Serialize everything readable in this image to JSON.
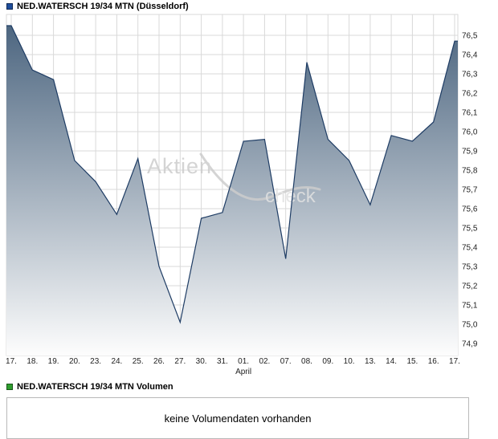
{
  "header": {
    "legend_color": "#1f4e9c",
    "title": "NED.WATERSCH 19/34 MTN (Düsseldorf)"
  },
  "chart_data": {
    "type": "area",
    "title": "NED.WATERSCH 19/34 MTN (Düsseldorf)",
    "watermark_part1": "Aktien",
    "watermark_part2": "check",
    "categories": [
      "17.",
      "18.",
      "19.",
      "20.",
      "23.",
      "24.",
      "25.",
      "26.",
      "27.",
      "30.",
      "31.",
      "01.",
      "02.",
      "07.",
      "08.",
      "09.",
      "10.",
      "13.",
      "14.",
      "15.",
      "16.",
      "17."
    ],
    "values": [
      76.55,
      76.32,
      76.27,
      75.85,
      75.74,
      75.57,
      75.86,
      75.3,
      75.01,
      75.55,
      75.58,
      75.95,
      75.96,
      75.34,
      76.36,
      75.96,
      75.85,
      75.62,
      75.98,
      75.95,
      76.05,
      76.47
    ],
    "month_label": "April",
    "month_label_index": 11,
    "xlabel": "",
    "ylabel": "",
    "ylim": [
      74.9,
      76.5
    ],
    "y_tick_step": 0.1,
    "y_ticks": [
      "76,5",
      "76,4",
      "76,3",
      "76,2",
      "76,1",
      "76,0",
      "75,9",
      "75,8",
      "75,7",
      "75,6",
      "75,5",
      "75,4",
      "75,3",
      "75,2",
      "75,1",
      "75,0",
      "74,9"
    ],
    "grid": true,
    "yaxis_side": "right",
    "legend_position": "top-left",
    "colors": {
      "line": "#1e3c64",
      "fill_top": "#47617c",
      "fill_bottom": "#fdfdfd",
      "grid": "#d9d9d9",
      "axis_text": "#222222",
      "watermark": "#cdcdcd"
    }
  },
  "volume": {
    "legend_color": "#2e9e2e",
    "label": "NED.WATERSCH 19/34 MTN Volumen",
    "message": "keine Volumendaten vorhanden"
  }
}
